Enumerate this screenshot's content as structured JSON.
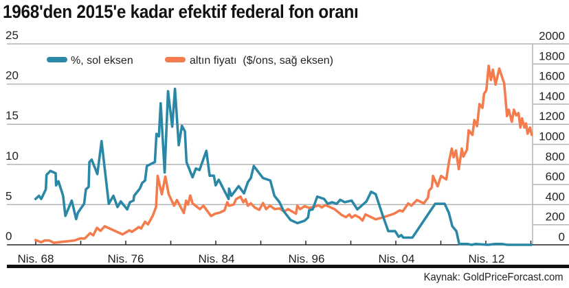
{
  "chart_data": {
    "type": "line",
    "title": "1968'den 2015'e kadar efektif federal fon oranı",
    "source": "Kaynak: GoldPriceForcast.com",
    "legend_position": "top-left",
    "grid": true,
    "colors": {
      "rate": "#2a87a6",
      "gold": "#f47c4c"
    },
    "x_ticks": [
      {
        "label": "Nis. 68",
        "value": 1968.25
      },
      {
        "label": "Nis. 76",
        "value": 1976.25
      },
      {
        "label": "Nis. 84",
        "value": 1984.25
      },
      {
        "label": "Nis. 96",
        "value": 1996.25
      },
      {
        "label": "Nis. 04",
        "value": 2004.25
      },
      {
        "label": "Nis. 12",
        "value": 2012.25
      }
    ],
    "y_left": {
      "ylim": [
        0,
        25
      ],
      "ticks": [
        "0",
        "5",
        "10",
        "15",
        "20",
        "25"
      ]
    },
    "y_right": {
      "ylim": [
        0,
        2000
      ],
      "ticks": [
        "0",
        "200",
        "400",
        "600",
        "800",
        "1000",
        "1200",
        "1400",
        "1600",
        "1800",
        "2000"
      ]
    },
    "series": [
      {
        "name": "%, sol eksen",
        "axis": "left",
        "x": [
          1968.23,
          1968.54,
          1968.74,
          1969.15,
          1969.21,
          1969.55,
          1970.02,
          1970.06,
          1970.27,
          1970.68,
          1970.88,
          1971.45,
          1971.84,
          1972.0,
          1972.55,
          1972.71,
          1972.95,
          1973.02,
          1973.22,
          1973.73,
          1974.1,
          1974.74,
          1975.15,
          1975.52,
          1975.81,
          1976.38,
          1976.62,
          1976.93,
          1976.99,
          1977.49,
          1977.7,
          1977.95,
          1978.11,
          1978.82,
          1978.96,
          1979.17,
          1979.33,
          1979.68,
          1979.98,
          1980.35,
          1980.59,
          1980.92,
          1981.2,
          1981.47,
          1981.61,
          1982.14,
          1982.43,
          1982.75,
          1983.36,
          1983.65,
          1984.02,
          1984.18,
          1984.55,
          1985.87,
          1985.93,
          1986.24,
          1987.21,
          1987.91,
          1988.44,
          1988.83,
          1989.22,
          1990.45,
          1991.42,
          1991.97,
          1992.65,
          1993.2,
          1994.12,
          1995.03,
          1995.7,
          1996.0,
          1996.39,
          1996.49,
          1996.8,
          1997.21,
          1997.82,
          1998.13,
          1998.53,
          1998.94,
          1999.24,
          1999.65,
          2000.26,
          2000.77,
          2001.58,
          2001.99,
          2002.4,
          2003.01,
          2003.52,
          2004.13,
          2004.44,
          2004.68,
          2004.85,
          2005.66,
          2007.68,
          2008.53,
          2008.9,
          2009.21,
          2009.57,
          2009.82,
          2010.55,
          2010.92,
          2011.29,
          2012.39,
          2013.0,
          2013.61,
          2014.1,
          2016.24
        ],
        "y": [
          5.7,
          6.1,
          5.7,
          6.9,
          8.7,
          9.2,
          8.9,
          7.4,
          7.9,
          6.1,
          3.6,
          5.5,
          3.2,
          4.0,
          5.1,
          6.9,
          7.2,
          10.3,
          10.6,
          8.8,
          12.9,
          5.1,
          6.1,
          4.7,
          5.4,
          4.4,
          5.3,
          5.5,
          6.1,
          7.0,
          7.7,
          8.0,
          9.8,
          10.3,
          13.8,
          13.5,
          17.6,
          9.0,
          19.1,
          14.7,
          19.4,
          12.4,
          14.8,
          14.1,
          10.3,
          8.4,
          9.5,
          9.3,
          11.7,
          8.6,
          8.6,
          7.4,
          8.1,
          5.7,
          7.0,
          6.1,
          7.3,
          6.4,
          7.8,
          8.3,
          9.8,
          8.3,
          8.0,
          6.1,
          5.3,
          4.2,
          3.1,
          2.7,
          2.9,
          3.0,
          3.4,
          4.3,
          4.4,
          6.0,
          5.7,
          5.1,
          5.3,
          5.1,
          5.6,
          5.3,
          5.5,
          4.4,
          5.4,
          6.6,
          6.3,
          3.7,
          1.7,
          1.7,
          1.0,
          1.2,
          0.9,
          0.9,
          5.1,
          5.1,
          4.0,
          2.3,
          1.7,
          0.1,
          0.1,
          0.0,
          0.1,
          0.0,
          0.1,
          0.1,
          0.0,
          0.0
        ]
      },
      {
        "name": "altın fiyatı  ($/ons, sağ eksen)",
        "axis": "right",
        "x": [
          1968.23,
          1968.74,
          1969.04,
          1969.45,
          1969.86,
          1971.69,
          1972.2,
          1972.61,
          1973.08,
          1973.36,
          1973.69,
          1974.0,
          1974.38,
          1975.97,
          1976.58,
          1976.79,
          1977.4,
          1977.6,
          1977.95,
          1978.21,
          1978.62,
          1978.92,
          1979.06,
          1979.43,
          1979.74,
          1980.04,
          1980.51,
          1980.76,
          1981.37,
          1981.57,
          1981.74,
          1981.94,
          1982.14,
          1982.79,
          1983.1,
          1983.77,
          1984.12,
          1984.71,
          1985.32,
          1985.69,
          1985.93,
          1986.55,
          1986.85,
          1987.46,
          1987.83,
          1988.13,
          1988.44,
          1988.83,
          1989.35,
          1989.96,
          1990.45,
          1990.87,
          1991.36,
          1992.03,
          1992.65,
          1993.25,
          1993.8,
          1994.85,
          1995.03,
          1995.4,
          1996.0,
          1996.49,
          1996.9,
          1997.31,
          1997.61,
          1997.92,
          1998.74,
          1999.35,
          1999.75,
          2000.06,
          2000.26,
          2000.57,
          2000.97,
          2001.22,
          2001.49,
          2002.4,
          2003.11,
          2004.03,
          2004.54,
          2004.8,
          2005.29,
          2005.56,
          2006.07,
          2006.68,
          2007.05,
          2007.13,
          2007.39,
          2007.49,
          2007.9,
          2008.21,
          2008.67,
          2008.92,
          2009.16,
          2009.33,
          2009.53,
          2009.78,
          2010.05,
          2010.19,
          2010.51,
          2010.66,
          2011.0,
          2011.17,
          2011.41,
          2011.62,
          2011.89,
          2012.03,
          2012.23,
          2012.44,
          2012.64,
          2012.81,
          2013.05,
          2013.38,
          2013.82,
          2014.07,
          2014.23,
          2014.5,
          2014.68,
          2014.89,
          2015.09,
          2015.26,
          2015.41,
          2015.62,
          2015.76,
          2015.9,
          2016.11,
          2016.27
        ],
        "y": [
          48,
          25,
          43,
          43,
          20,
          43,
          63,
          63,
          116,
          94,
          169,
          139,
          184,
          104,
          145,
          128,
          177,
          162,
          230,
          203,
          287,
          377,
          685,
          503,
          679,
          503,
          389,
          446,
          316,
          439,
          401,
          491,
          412,
          355,
          389,
          287,
          309,
          321,
          343,
          423,
          389,
          401,
          453,
          480,
          423,
          453,
          389,
          412,
          371,
          348,
          416,
          355,
          389,
          355,
          362,
          332,
          355,
          309,
          389,
          355,
          384,
          367,
          377,
          394,
          371,
          396,
          355,
          298,
          275,
          302,
          271,
          294,
          271,
          241,
          302,
          253,
          275,
          309,
          343,
          332,
          412,
          389,
          446,
          412,
          469,
          537,
          571,
          685,
          582,
          685,
          651,
          833,
          958,
          872,
          940,
          753,
          958,
          878,
          947,
          1140,
          1094,
          1242,
          1181,
          1401,
          1363,
          1504,
          1538,
          1782,
          1640,
          1743,
          1595,
          1754,
          1606,
          1281,
          1345,
          1224,
          1345,
          1288,
          1311,
          1167,
          1258,
          1167,
          1208,
          1106,
          1167,
          1094
        ]
      }
    ]
  }
}
